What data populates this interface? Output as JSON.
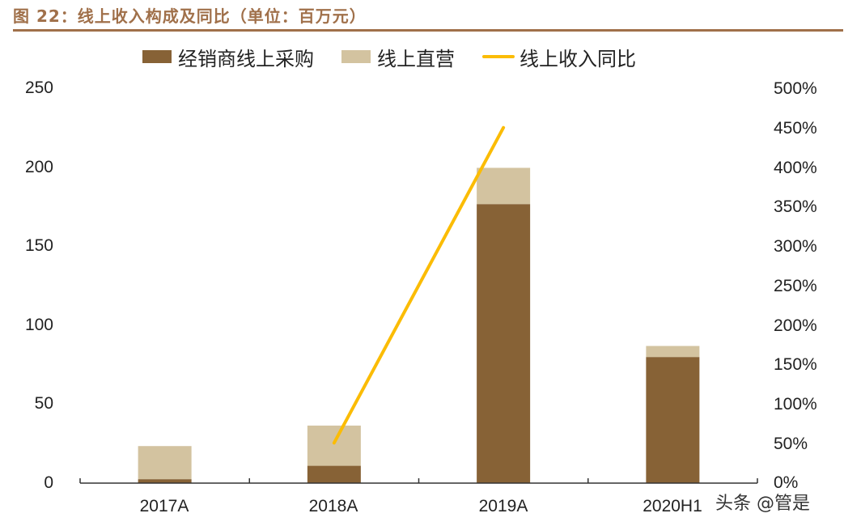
{
  "title": "图 22：线上收入构成及同比（单位：百万元）",
  "colors": {
    "title": "#a0704a",
    "dealer": "#876236",
    "direct": "#d3c3a0",
    "yoy_line": "#fbbc05",
    "axis": "#333333"
  },
  "legend": [
    {
      "label": "经销商线上采购",
      "type": "box",
      "color": "#876236"
    },
    {
      "label": "线上直营",
      "type": "box",
      "color": "#d3c3a0"
    },
    {
      "label": "线上收入同比",
      "type": "line",
      "color": "#fbbc05"
    }
  ],
  "left_axis": {
    "ticks": [
      "250",
      "200",
      "150",
      "100",
      "50",
      "0"
    ]
  },
  "right_axis": {
    "ticks": [
      "500%",
      "450%",
      "400%",
      "350%",
      "300%",
      "250%",
      "200%",
      "150%",
      "100%",
      "50%",
      "0%"
    ]
  },
  "x_axis": {
    "labels": [
      "2017A",
      "2018A",
      "2019A",
      "2020H1"
    ]
  },
  "watermark": "头条 @管是",
  "chart_data": {
    "type": "bar",
    "stacked": true,
    "title": "线上收入构成及同比（单位：百万元）",
    "categories": [
      "2017A",
      "2018A",
      "2019A",
      "2020H1"
    ],
    "series": [
      {
        "name": "经销商线上采购",
        "type": "bar",
        "axis": "left",
        "color": "#876236",
        "values": [
          2.5,
          11,
          177,
          80
        ]
      },
      {
        "name": "线上直营",
        "type": "bar",
        "axis": "left",
        "color": "#d3c3a0",
        "values": [
          21,
          25.5,
          23,
          7
        ]
      },
      {
        "name": "线上收入同比",
        "type": "line",
        "axis": "right",
        "color": "#fbbc05",
        "values": [
          null,
          0.51,
          4.51,
          null
        ]
      }
    ],
    "xlabel": "",
    "ylabel": "百万元",
    "ylim": [
      0,
      250
    ],
    "y2lim": [
      0,
      5.0
    ],
    "y2_format": "percent",
    "grid": false,
    "legend_position": "top"
  }
}
